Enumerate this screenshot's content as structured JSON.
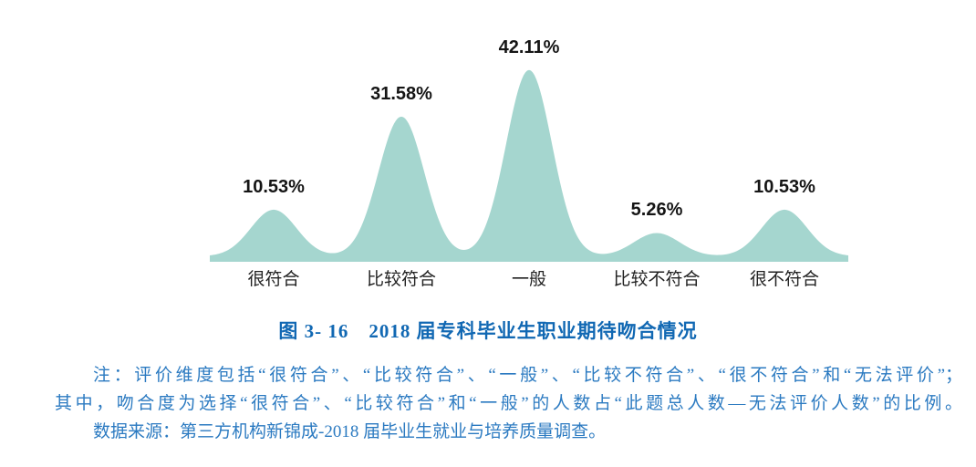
{
  "chart_data": {
    "type": "area",
    "title": "图 3- 16　2018 届专科毕业生职业期待吻合情况",
    "categories": [
      "很符合",
      "比较符合",
      "一般",
      "比较不符合",
      "很不符合"
    ],
    "values": [
      10.53,
      31.58,
      42.11,
      5.26,
      10.53
    ],
    "value_labels": [
      "10.53%",
      "31.58%",
      "42.11%",
      "5.26%",
      "10.53%"
    ],
    "xlabel": "",
    "ylabel": "",
    "ylim": [
      0,
      45
    ],
    "grid": false,
    "legend": "none",
    "fill_color": "#a5d6cf"
  },
  "caption": {
    "text": "图 3- 16　2018 届专科毕业生职业期待吻合情况",
    "color": "#1168b3"
  },
  "notes": {
    "lines": [
      "注：评价维度包括“很符合”、“比较符合”、“一般”、“比较不符合”、“很不符合”和“无法评价”；",
      "其中，吻合度为选择“很符合”、“比较符合”和“一般”的人数占“此题总人数—无法评价人数”的比例。",
      "数据来源：第三方机构新锦成-2018 届毕业生就业与培养质量调查。"
    ],
    "color": "#2b7ac1"
  }
}
